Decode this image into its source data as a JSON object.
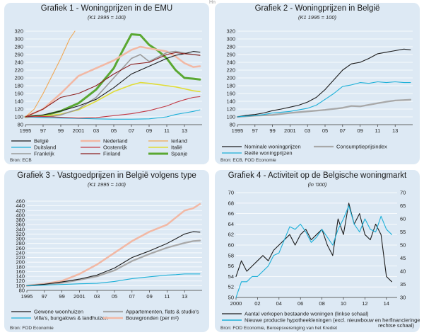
{
  "stray_text": "Hn",
  "chart_data": [
    {
      "type": "line",
      "title": "Grafiek 1 - Woningprijzen in de EMU",
      "subtitle": "(K1 1995 = 100)",
      "source": "Bron: ECB",
      "x_tick_labels": [
        "1995",
        "97",
        "99",
        "2001",
        "03",
        "05",
        "07",
        "09",
        "11",
        "13"
      ],
      "y_tick_labels": [
        "80",
        "100",
        "120",
        "140",
        "160",
        "180",
        "200",
        "220",
        "240",
        "260",
        "280",
        "300",
        "320"
      ],
      "xlim": [
        1995,
        2015
      ],
      "ylim": [
        80,
        320
      ],
      "series": [
        {
          "name": "België",
          "color": "#1c1c1c",
          "width": 1.1,
          "x": [
            1995,
            1997,
            1999,
            2001,
            2003,
            2005,
            2007,
            2009,
            2011,
            2012,
            2013,
            2014,
            2014.75
          ],
          "values": [
            100,
            105,
            115,
            128,
            145,
            175,
            210,
            230,
            250,
            258,
            262,
            268,
            266
          ]
        },
        {
          "name": "Nederland",
          "color": "#f2b8a4",
          "width": 2.5,
          "x": [
            1995,
            1997,
            1999,
            2001,
            2003,
            2005,
            2007,
            2008,
            2009,
            2011,
            2012,
            2013,
            2014,
            2014.75
          ],
          "values": [
            100,
            120,
            160,
            205,
            225,
            245,
            272,
            280,
            276,
            268,
            255,
            238,
            228,
            230
          ]
        },
        {
          "name": "Ierland",
          "color": "#f0a855",
          "width": 1.1,
          "x": [
            1995,
            1996,
            1997,
            1998,
            1999,
            2000,
            2000.6
          ],
          "values": [
            100,
            120,
            160,
            205,
            250,
            300,
            320
          ]
        },
        {
          "name": "Duitsland",
          "color": "#1db0d8",
          "width": 1.1,
          "x": [
            1995,
            1997,
            1999,
            2001,
            2003,
            2005,
            2007,
            2009,
            2011,
            2012,
            2013,
            2014,
            2014.75
          ],
          "values": [
            100,
            98,
            97,
            96,
            95,
            94,
            94,
            95,
            100,
            106,
            110,
            114,
            118
          ]
        },
        {
          "name": "Oostenrijk",
          "color": "#c23a45",
          "width": 1.1,
          "x": [
            1995,
            1997,
            1999,
            2001,
            2003,
            2005,
            2007,
            2009,
            2011,
            2012,
            2013,
            2014,
            2014.75
          ],
          "values": [
            100,
            101,
            99,
            97,
            98,
            103,
            108,
            116,
            128,
            137,
            144,
            150,
            152
          ]
        },
        {
          "name": "Italië",
          "color": "#e0dc35",
          "width": 1.6,
          "x": [
            1995,
            1997,
            1999,
            2001,
            2003,
            2005,
            2007,
            2008,
            2009,
            2011,
            2012,
            2013,
            2014,
            2014.75
          ],
          "values": [
            100,
            102,
            107,
            118,
            140,
            165,
            182,
            188,
            186,
            180,
            177,
            172,
            167,
            165
          ]
        },
        {
          "name": "Frankrijk",
          "color": "#9a9a9a",
          "width": 1.6,
          "x": [
            1995,
            1997,
            1999,
            2001,
            2003,
            2005,
            2007,
            2008,
            2009,
            2011,
            2012,
            2013,
            2014,
            2014.75
          ],
          "values": [
            100,
            99,
            105,
            120,
            150,
            200,
            250,
            260,
            242,
            265,
            268,
            264,
            260,
            258
          ]
        },
        {
          "name": "Finland",
          "color": "#8b1e1e",
          "width": 1.1,
          "x": [
            1995,
            1997,
            1999,
            2001,
            2003,
            2005,
            2007,
            2009,
            2011,
            2012,
            2013,
            2014,
            2014.75
          ],
          "values": [
            100,
            120,
            150,
            160,
            180,
            210,
            235,
            240,
            260,
            265,
            262,
            260,
            258
          ]
        },
        {
          "name": "Spanje",
          "color": "#5aa832",
          "width": 3,
          "x": [
            1995,
            1997,
            1999,
            2001,
            2003,
            2005,
            2006,
            2007,
            2008,
            2009,
            2010,
            2011,
            2012,
            2013,
            2014,
            2014.75
          ],
          "values": [
            100,
            103,
            115,
            135,
            170,
            225,
            270,
            312,
            310,
            285,
            270,
            250,
            220,
            200,
            198,
            196
          ]
        }
      ]
    },
    {
      "type": "line",
      "title": "Grafiek 2 - Woningprijzen in België",
      "subtitle": "(K1 1995 = 100)",
      "source": "Bron: ECB, FOD Economie",
      "x_tick_labels": [
        "1995",
        "97",
        "99",
        "2001",
        "03",
        "05",
        "07",
        "09",
        "11",
        "13"
      ],
      "y_tick_labels": [
        "80",
        "100",
        "120",
        "140",
        "160",
        "180",
        "200",
        "220",
        "240",
        "260",
        "280",
        "300",
        "320"
      ],
      "xlim": [
        1995,
        2015
      ],
      "ylim": [
        80,
        320
      ],
      "series": [
        {
          "name": "Nominale woningprijzen",
          "color": "#1c1c1c",
          "width": 1.1,
          "x": [
            1995,
            1996,
            1997,
            1998,
            1999,
            2000,
            2001,
            2002,
            2003,
            2004,
            2005,
            2006,
            2007,
            2008,
            2009,
            2010,
            2011,
            2012,
            2013,
            2014,
            2014.75
          ],
          "values": [
            100,
            104,
            106,
            110,
            116,
            120,
            125,
            130,
            138,
            150,
            170,
            195,
            220,
            236,
            240,
            250,
            262,
            266,
            270,
            274,
            272
          ]
        },
        {
          "name": "Consumptieprijsindex",
          "color": "#a8a8a8",
          "width": 2.3,
          "x": [
            1995,
            1997,
            1999,
            2001,
            2003,
            2005,
            2007,
            2008,
            2009,
            2011,
            2012,
            2013,
            2014,
            2014.75
          ],
          "values": [
            100,
            103,
            105,
            110,
            114,
            118,
            123,
            128,
            127,
            135,
            139,
            142,
            143,
            144
          ]
        },
        {
          "name": "Reële woningprijzen",
          "color": "#1db0d8",
          "width": 1.1,
          "x": [
            1995,
            1996,
            1997,
            1998,
            1999,
            2000,
            2001,
            2002,
            2003,
            2004,
            2005,
            2006,
            2007,
            2008,
            2009,
            2010,
            2011,
            2012,
            2013,
            2014,
            2014.75
          ],
          "values": [
            100,
            102,
            103,
            106,
            110,
            112,
            114,
            118,
            122,
            130,
            145,
            160,
            178,
            182,
            188,
            186,
            190,
            188,
            190,
            188,
            188
          ]
        }
      ]
    },
    {
      "type": "line",
      "title": "Grafiek 3 - Vastgoedprijzen in België volgens type",
      "subtitle": "(K1 1995 = 100)",
      "source": "Bron: FOD Economie",
      "x_tick_labels": [
        "1995",
        "97",
        "99",
        "2001",
        "03",
        "05",
        "07",
        "09",
        "11",
        "13"
      ],
      "y_tick_labels": [
        "80",
        "100",
        "120",
        "140",
        "160",
        "180",
        "200",
        "220",
        "240",
        "260",
        "280",
        "300",
        "320",
        "340",
        "360",
        "380",
        "400",
        "420",
        "440",
        "460"
      ],
      "xlim": [
        1995,
        2015
      ],
      "ylim": [
        80,
        460
      ],
      "series": [
        {
          "name": "Gewone woonhuizen",
          "color": "#1c1c1c",
          "width": 1.1,
          "x": [
            1995,
            1997,
            1999,
            2001,
            2003,
            2005,
            2007,
            2009,
            2011,
            2012,
            2013,
            2014,
            2014.75
          ],
          "values": [
            100,
            106,
            116,
            128,
            145,
            175,
            220,
            248,
            280,
            300,
            320,
            330,
            328
          ]
        },
        {
          "name": "Appartementen, flats & studio's",
          "color": "#a8a8a8",
          "width": 2.3,
          "x": [
            1995,
            1997,
            1999,
            2001,
            2003,
            2005,
            2007,
            2009,
            2011,
            2012,
            2013,
            2014,
            2014.75
          ],
          "values": [
            100,
            105,
            112,
            125,
            140,
            165,
            205,
            235,
            262,
            272,
            282,
            290,
            292
          ]
        },
        {
          "name": "Villa's, bungalows & landhuizen",
          "color": "#1db0d8",
          "width": 1.1,
          "x": [
            1995,
            1997,
            1999,
            2001,
            2003,
            2005,
            2007,
            2009,
            2011,
            2012,
            2013,
            2014,
            2014.75
          ],
          "values": [
            100,
            102,
            105,
            108,
            110,
            118,
            130,
            138,
            145,
            147,
            150,
            150,
            150
          ]
        },
        {
          "name": "Bouwgronden (per m²)",
          "color": "#f2b8a4",
          "width": 2.5,
          "x": [
            1995,
            1997,
            1999,
            2001,
            2003,
            2005,
            2007,
            2009,
            2011,
            2012,
            2013,
            2014,
            2014.75
          ],
          "values": [
            100,
            108,
            120,
            150,
            190,
            240,
            290,
            330,
            360,
            390,
            420,
            430,
            448
          ]
        }
      ]
    },
    {
      "type": "line",
      "title": "Grafiek 4 - Activiteit op de Belgische woningmarkt",
      "subtitle": "(in '000)",
      "source": "Bron: FOD Economie, Beroepsvereniging van het Krediet",
      "x_tick_labels": [
        "2000",
        "02",
        "04",
        "06",
        "08",
        "10",
        "12",
        "14"
      ],
      "left_axis": {
        "ylim": [
          50,
          70
        ],
        "tick_labels": [
          "50",
          "52",
          "54",
          "56",
          "58",
          "60",
          "62",
          "64",
          "66",
          "68",
          "70"
        ]
      },
      "right_axis": {
        "ylim": [
          30,
          70
        ],
        "tick_labels": [
          "30",
          "35",
          "40",
          "45",
          "50",
          "55",
          "60",
          "65",
          "70"
        ]
      },
      "xlim": [
        2000,
        2015
      ],
      "series": [
        {
          "name": "Aantal verkopen bestaande woningen (linkse schaal)",
          "color": "#1c1c1c",
          "width": 1.1,
          "axis": "left",
          "x": [
            2000,
            2000.5,
            2001,
            2001.5,
            2002,
            2002.5,
            2003,
            2003.5,
            2004,
            2004.5,
            2005,
            2005.5,
            2006,
            2006.5,
            2007,
            2007.5,
            2008,
            2008.5,
            2009,
            2009.5,
            2010,
            2010.5,
            2011,
            2011.5,
            2012,
            2012.5,
            2013,
            2013.5,
            2014,
            2014.5
          ],
          "values": [
            54,
            57,
            55,
            56,
            57,
            58,
            57,
            59,
            60,
            61,
            62,
            60,
            62,
            63,
            61,
            62,
            63,
            60,
            58,
            65,
            62,
            68,
            64,
            66,
            62,
            61,
            64,
            62,
            54,
            53
          ]
        },
        {
          "name": "Nieuwe productie hypotheekleningen (excl. nieuwbouw en herfinancieringen, rechtse schaal)",
          "color": "#1db0d8",
          "width": 1.1,
          "axis": "right",
          "x": [
            2000,
            2000.5,
            2001,
            2001.5,
            2002,
            2002.5,
            2003,
            2003.5,
            2004,
            2004.5,
            2005,
            2005.5,
            2006,
            2006.5,
            2007,
            2007.5,
            2008,
            2008.5,
            2009,
            2009.5,
            2010,
            2010.5,
            2011,
            2011.5,
            2012,
            2012.5,
            2013,
            2013.5,
            2014,
            2014.5
          ],
          "values": [
            30,
            36,
            36,
            38,
            38,
            40,
            42,
            46,
            47,
            52,
            57,
            56,
            58,
            55,
            51,
            53,
            56,
            53,
            50,
            56,
            60,
            65,
            58,
            55,
            60,
            56,
            55,
            61,
            56,
            54
          ]
        }
      ]
    }
  ]
}
